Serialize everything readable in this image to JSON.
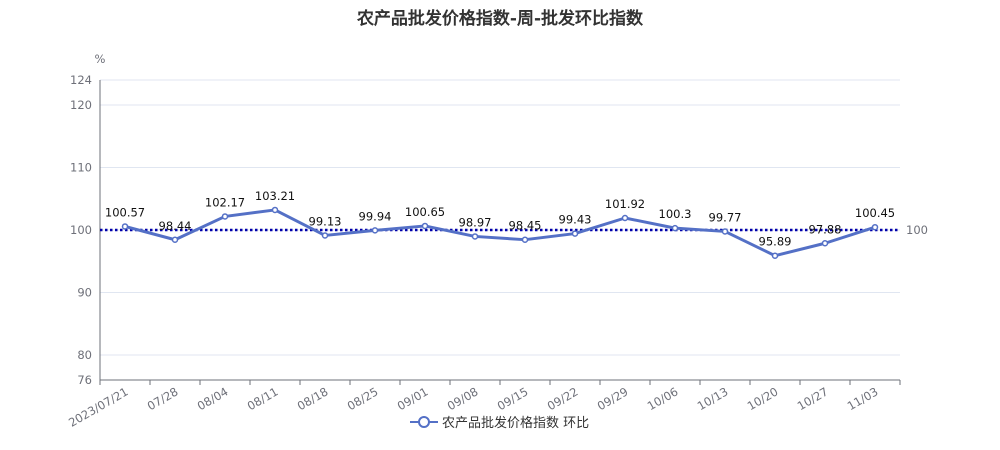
{
  "title": "农产品批发价格指数-周-批发环比指数",
  "chart_data": {
    "type": "line",
    "title": "农产品批发价格指数-周-批发环比指数",
    "ylabel": "%",
    "categories": [
      "2023/07/21",
      "07/28",
      "08/04",
      "08/11",
      "08/18",
      "08/25",
      "09/01",
      "09/08",
      "09/15",
      "09/22",
      "09/29",
      "10/06",
      "10/13",
      "10/20",
      "10/27",
      "11/03"
    ],
    "yticks": [
      76,
      80,
      90,
      100,
      110,
      120,
      124
    ],
    "ylim": [
      76,
      124
    ],
    "grid": true,
    "series": [
      {
        "name": "农产品批发价格指数 环比",
        "color": "#5470c6",
        "values": [
          100.57,
          98.44,
          102.17,
          103.21,
          99.13,
          99.94,
          100.65,
          98.97,
          98.45,
          99.43,
          101.92,
          100.3,
          99.77,
          95.89,
          97.88,
          100.45
        ],
        "labels": [
          "100.57",
          "98.44",
          "102.17",
          "103.21",
          "99.13",
          "99.94",
          "100.65",
          "98.97",
          "98.45",
          "99.43",
          "101.92",
          "100.3",
          "99.77",
          "95.89",
          "97.88",
          "100.45"
        ]
      }
    ],
    "reference_line": {
      "value": 100,
      "label": "100",
      "color": "#0000aa",
      "style": "dotted"
    },
    "legend_position": "bottom-center"
  }
}
